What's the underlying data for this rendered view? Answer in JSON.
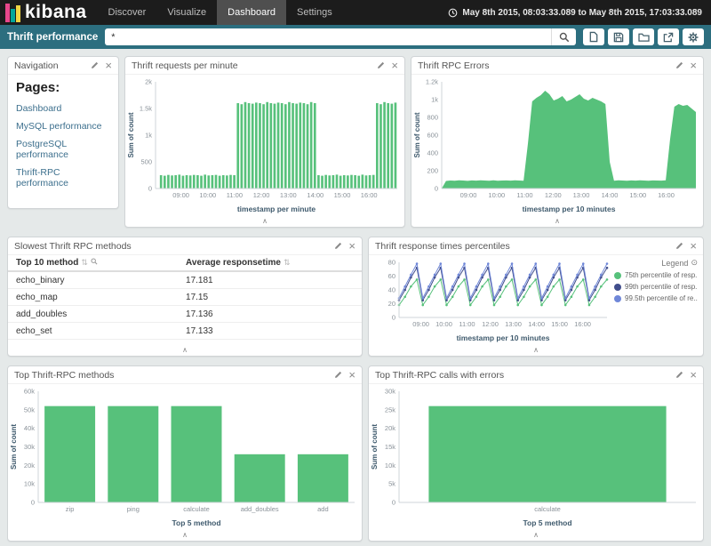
{
  "header": {
    "logo": "kibana",
    "nav": [
      {
        "label": "Discover"
      },
      {
        "label": "Visualize"
      },
      {
        "label": "Dashboard"
      },
      {
        "label": "Settings"
      }
    ],
    "timerange": "May 8th 2015, 08:03:33.089 to May 8th 2015, 17:03:33.089"
  },
  "toolbar": {
    "dashboard_title": "Thrift performance",
    "query": "*"
  },
  "icons": {
    "collapse": "∧",
    "close": "×",
    "sort": "⇅",
    "legend_toggle": "⊙"
  },
  "colors": {
    "accent_green": "#57c17b",
    "teal_bar": "#2c6e7f",
    "navy": "#414e8c",
    "light_blue": "#6f87d8"
  },
  "panels": {
    "navigation": {
      "title": "Navigation",
      "heading": "Pages:",
      "links": [
        "Dashboard",
        "MySQL performance",
        "PostgreSQL performance",
        "Thrift-RPC performance"
      ]
    },
    "requests": {
      "title": "Thrift requests per minute"
    },
    "errors": {
      "title": "Thrift RPC Errors"
    },
    "slowest": {
      "title": "Slowest Thrift RPC methods",
      "table": {
        "columns": [
          "Top 10 method",
          "Average responsetime"
        ],
        "rows": [
          [
            "echo_binary",
            "17.181"
          ],
          [
            "echo_map",
            "17.15"
          ],
          [
            "add_doubles",
            "17.136"
          ],
          [
            "echo_set",
            "17.133"
          ]
        ]
      }
    },
    "percentiles": {
      "title": "Thrift response times percentiles",
      "legend_title": "Legend",
      "legend": [
        {
          "label": "75th percentile of resp...",
          "color": "#57c17b"
        },
        {
          "label": "99th percentile of resp...",
          "color": "#414e8c"
        },
        {
          "label": "99.5th percentile of re...",
          "color": "#6f87d8"
        }
      ]
    },
    "top_methods": {
      "title": "Top Thrift-RPC methods"
    },
    "top_errors": {
      "title": "Top Thrift-RPC calls with errors"
    }
  },
  "chart_data": [
    {
      "id": "requests",
      "type": "bar",
      "title": "Thrift requests per minute",
      "xlabel": "timestamp per minute",
      "ylabel": "Sum of count",
      "ylim": [
        0,
        2000
      ],
      "y_ticks": [
        {
          "v": 0,
          "label": "0"
        },
        {
          "v": 500,
          "label": "500"
        },
        {
          "v": 1000,
          "label": "1k"
        },
        {
          "v": 1500,
          "label": "1.5k"
        },
        {
          "v": 2000,
          "label": "2k"
        }
      ],
      "x_ticks": [
        {
          "pos": 0.105,
          "label": "09:00"
        },
        {
          "pos": 0.216,
          "label": "10:00"
        },
        {
          "pos": 0.327,
          "label": "11:00"
        },
        {
          "pos": 0.438,
          "label": "12:00"
        },
        {
          "pos": 0.549,
          "label": "13:00"
        },
        {
          "pos": 0.661,
          "label": "14:00"
        },
        {
          "pos": 0.772,
          "label": "15:00"
        },
        {
          "pos": 0.883,
          "label": "16:00"
        }
      ],
      "values": [
        0,
        250,
        240,
        255,
        245,
        250,
        260,
        240,
        250,
        245,
        255,
        250,
        240,
        260,
        245,
        250,
        255,
        240,
        250,
        245,
        255,
        250,
        1600,
        1580,
        1620,
        1600,
        1590,
        1610,
        1600,
        1580,
        1620,
        1600,
        1590,
        1610,
        1600,
        1580,
        1620,
        1600,
        1590,
        1610,
        1600,
        1580,
        1620,
        1600,
        250,
        240,
        255,
        245,
        250,
        260,
        240,
        250,
        245,
        255,
        250,
        240,
        260,
        245,
        250,
        255,
        1600,
        1580,
        1620,
        1600,
        1590,
        1610
      ]
    },
    {
      "id": "errors",
      "type": "area",
      "title": "Thrift RPC Errors",
      "xlabel": "timestamp per 10 minutes",
      "ylabel": "Sum of count",
      "ylim": [
        0,
        1200
      ],
      "y_ticks": [
        {
          "v": 0,
          "label": "0"
        },
        {
          "v": 200,
          "label": "200"
        },
        {
          "v": 400,
          "label": "400"
        },
        {
          "v": 600,
          "label": "600"
        },
        {
          "v": 800,
          "label": "800"
        },
        {
          "v": 1000,
          "label": "1k"
        },
        {
          "v": 1200,
          "label": "1.2k"
        }
      ],
      "x_ticks": [
        {
          "pos": 0.105,
          "label": "09:00"
        },
        {
          "pos": 0.216,
          "label": "10:00"
        },
        {
          "pos": 0.327,
          "label": "11:00"
        },
        {
          "pos": 0.438,
          "label": "12:00"
        },
        {
          "pos": 0.549,
          "label": "13:00"
        },
        {
          "pos": 0.661,
          "label": "14:00"
        },
        {
          "pos": 0.772,
          "label": "15:00"
        },
        {
          "pos": 0.883,
          "label": "16:00"
        }
      ],
      "values": [
        0,
        85,
        90,
        88,
        92,
        90,
        86,
        91,
        89,
        93,
        90,
        87,
        92,
        88,
        90,
        91,
        89,
        92,
        90,
        88,
        500,
        980,
        1020,
        1050,
        1100,
        1060,
        990,
        1010,
        1040,
        980,
        1000,
        1030,
        1060,
        1010,
        990,
        1020,
        1000,
        980,
        950,
        300,
        88,
        92,
        90,
        87,
        91,
        89,
        92,
        90,
        88,
        91,
        90,
        89,
        92,
        550,
        920,
        950,
        930,
        940,
        900,
        860
      ]
    },
    {
      "id": "percentiles",
      "type": "line",
      "title": "Thrift response times percentiles",
      "xlabel": "timestamp per 10 minutes",
      "ylabel": "",
      "ylim": [
        0,
        80
      ],
      "y_ticks": [
        {
          "v": 0,
          "label": "0"
        },
        {
          "v": 20,
          "label": "20"
        },
        {
          "v": 40,
          "label": "40"
        },
        {
          "v": 60,
          "label": "60"
        },
        {
          "v": 80,
          "label": "80"
        }
      ],
      "x_ticks": [
        {
          "pos": 0.105,
          "label": "09:00"
        },
        {
          "pos": 0.216,
          "label": "10:00"
        },
        {
          "pos": 0.327,
          "label": "11:00"
        },
        {
          "pos": 0.438,
          "label": "12:00"
        },
        {
          "pos": 0.549,
          "label": "13:00"
        },
        {
          "pos": 0.661,
          "label": "14:00"
        },
        {
          "pos": 0.772,
          "label": "15:00"
        },
        {
          "pos": 0.883,
          "label": "16:00"
        }
      ],
      "series": [
        {
          "name": "75th percentile of responsetime",
          "color": "#57c17b",
          "values": [
            18,
            30,
            45,
            55,
            18,
            30,
            45,
            55,
            18,
            30,
            45,
            55,
            18,
            30,
            45,
            55,
            18,
            30,
            45,
            55,
            18,
            30,
            45,
            55,
            18,
            30,
            45,
            55,
            18,
            30,
            45,
            55,
            18,
            30,
            45,
            55
          ]
        },
        {
          "name": "99th percentile of responsetime",
          "color": "#414e8c",
          "values": [
            25,
            40,
            58,
            72,
            25,
            40,
            58,
            72,
            25,
            40,
            58,
            72,
            25,
            40,
            58,
            72,
            25,
            40,
            58,
            72,
            25,
            40,
            58,
            72,
            25,
            40,
            58,
            72,
            25,
            40,
            58,
            72,
            25,
            40,
            58,
            72
          ]
        },
        {
          "name": "99.5th percentile of responsetime",
          "color": "#6f87d8",
          "values": [
            28,
            45,
            62,
            78,
            28,
            45,
            62,
            78,
            28,
            45,
            62,
            78,
            28,
            45,
            62,
            78,
            28,
            45,
            62,
            78,
            28,
            45,
            62,
            78,
            28,
            45,
            62,
            78,
            28,
            45,
            62,
            78,
            28,
            45,
            62,
            78
          ]
        }
      ]
    },
    {
      "id": "top_methods",
      "type": "bar",
      "title": "Top Thrift-RPC methods",
      "xlabel": "Top 5 method",
      "ylabel": "Sum of count",
      "ylim": [
        0,
        60000
      ],
      "categories": [
        "zip",
        "ping",
        "calculate",
        "add_doubles",
        "add"
      ],
      "values": [
        52000,
        52000,
        52000,
        26000,
        26000
      ],
      "y_ticks": [
        {
          "v": 0,
          "label": "0"
        },
        {
          "v": 10000,
          "label": "10k"
        },
        {
          "v": 20000,
          "label": "20k"
        },
        {
          "v": 30000,
          "label": "30k"
        },
        {
          "v": 40000,
          "label": "40k"
        },
        {
          "v": 50000,
          "label": "50k"
        },
        {
          "v": 60000,
          "label": "60k"
        }
      ]
    },
    {
      "id": "top_errors",
      "type": "bar",
      "title": "Top Thrift-RPC calls with errors",
      "xlabel": "Top 5 method",
      "ylabel": "Sum of count",
      "ylim": [
        0,
        30000
      ],
      "categories": [
        "calculate"
      ],
      "values": [
        26000
      ],
      "y_ticks": [
        {
          "v": 0,
          "label": "0"
        },
        {
          "v": 5000,
          "label": "5k"
        },
        {
          "v": 10000,
          "label": "10k"
        },
        {
          "v": 15000,
          "label": "15k"
        },
        {
          "v": 20000,
          "label": "20k"
        },
        {
          "v": 25000,
          "label": "25k"
        },
        {
          "v": 30000,
          "label": "30k"
        }
      ]
    }
  ]
}
